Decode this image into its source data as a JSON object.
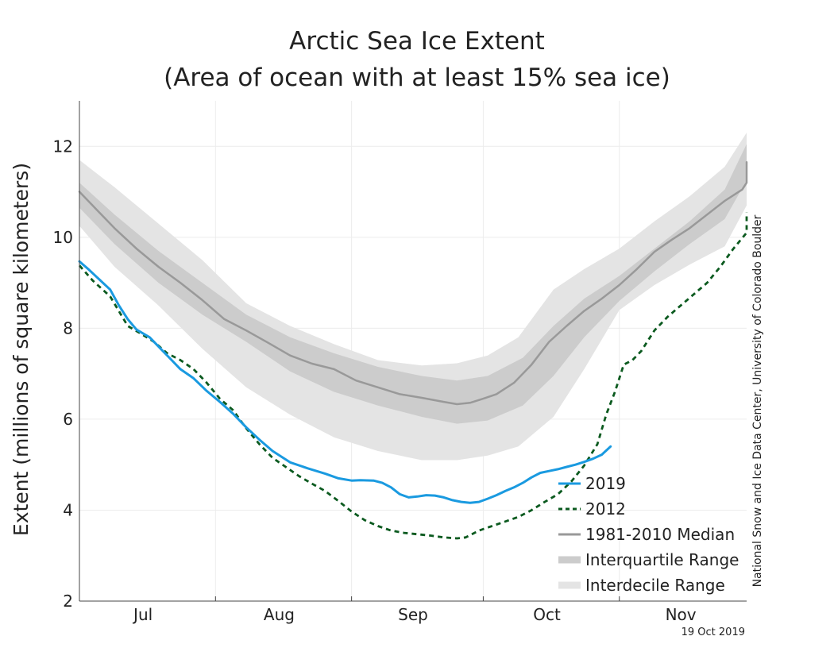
{
  "chart_data": {
    "type": "line",
    "title": "Arctic Sea Ice Extent",
    "subtitle": "(Area of ocean with at least 15% sea ice)",
    "ylabel": "Extent (millions of square kilometers)",
    "xlabel": "",
    "ylim": [
      2,
      13
    ],
    "y_ticks": [
      2,
      4,
      6,
      8,
      10,
      12
    ],
    "x_domain_days": [
      182,
      334
    ],
    "x_ticks": [
      {
        "label": "Jul",
        "day": 196.5
      },
      {
        "label": "Aug",
        "day": 227.5
      },
      {
        "label": "Sep",
        "day": 258
      },
      {
        "label": "Oct",
        "day": 288.5
      },
      {
        "label": "Nov",
        "day": 319
      }
    ],
    "x_gridlines_days": [
      213,
      244,
      274,
      305
    ],
    "grid": true,
    "legend_position": "bottom-right",
    "series": [
      {
        "name": "2019",
        "style": "solid",
        "color": "#1a9ae0",
        "points": [
          [
            182,
            9.47
          ],
          [
            184,
            9.3
          ],
          [
            186,
            9.12
          ],
          [
            189,
            8.85
          ],
          [
            191,
            8.5
          ],
          [
            193,
            8.2
          ],
          [
            195,
            7.97
          ],
          [
            198,
            7.8
          ],
          [
            200,
            7.6
          ],
          [
            203,
            7.3
          ],
          [
            205,
            7.1
          ],
          [
            208,
            6.9
          ],
          [
            211,
            6.62
          ],
          [
            214,
            6.38
          ],
          [
            217,
            6.12
          ],
          [
            220,
            5.82
          ],
          [
            223,
            5.55
          ],
          [
            226,
            5.3
          ],
          [
            230,
            5.05
          ],
          [
            234,
            4.92
          ],
          [
            238,
            4.8
          ],
          [
            241,
            4.7
          ],
          [
            244,
            4.65
          ],
          [
            246,
            4.66
          ],
          [
            249,
            4.65
          ],
          [
            251,
            4.6
          ],
          [
            253,
            4.5
          ],
          [
            255,
            4.35
          ],
          [
            257,
            4.28
          ],
          [
            259,
            4.3
          ],
          [
            261,
            4.33
          ],
          [
            263,
            4.32
          ],
          [
            265,
            4.28
          ],
          [
            267,
            4.22
          ],
          [
            269,
            4.18
          ],
          [
            271,
            4.16
          ],
          [
            273,
            4.18
          ],
          [
            275,
            4.25
          ],
          [
            277,
            4.33
          ],
          [
            279,
            4.42
          ],
          [
            281,
            4.5
          ],
          [
            283,
            4.6
          ],
          [
            285,
            4.72
          ],
          [
            287,
            4.82
          ],
          [
            289,
            4.86
          ],
          [
            291,
            4.9
          ],
          [
            293,
            4.95
          ],
          [
            295,
            5.0
          ],
          [
            297,
            5.06
          ],
          [
            299,
            5.13
          ],
          [
            301,
            5.22
          ],
          [
            303,
            5.4
          ]
        ]
      },
      {
        "name": "2012",
        "style": "dashed",
        "color": "#0b5a1f",
        "points": [
          [
            182,
            9.38
          ],
          [
            185,
            9.05
          ],
          [
            189,
            8.7
          ],
          [
            193,
            8.05
          ],
          [
            196,
            7.88
          ],
          [
            199,
            7.7
          ],
          [
            202,
            7.45
          ],
          [
            205,
            7.3
          ],
          [
            208,
            7.1
          ],
          [
            211,
            6.8
          ],
          [
            214,
            6.45
          ],
          [
            217,
            6.2
          ],
          [
            220,
            5.8
          ],
          [
            223,
            5.45
          ],
          [
            226,
            5.15
          ],
          [
            229,
            4.95
          ],
          [
            232,
            4.75
          ],
          [
            235,
            4.58
          ],
          [
            238,
            4.42
          ],
          [
            241,
            4.2
          ],
          [
            244,
            3.97
          ],
          [
            247,
            3.78
          ],
          [
            250,
            3.65
          ],
          [
            253,
            3.55
          ],
          [
            256,
            3.5
          ],
          [
            259,
            3.47
          ],
          [
            262,
            3.44
          ],
          [
            265,
            3.4
          ],
          [
            268,
            3.38
          ],
          [
            270,
            3.4
          ],
          [
            273,
            3.55
          ],
          [
            276,
            3.65
          ],
          [
            279,
            3.75
          ],
          [
            282,
            3.85
          ],
          [
            285,
            4.0
          ],
          [
            288,
            4.18
          ],
          [
            291,
            4.35
          ],
          [
            294,
            4.62
          ],
          [
            297,
            4.98
          ],
          [
            300,
            5.45
          ],
          [
            302,
            6.1
          ],
          [
            304,
            6.6
          ],
          [
            306,
            7.2
          ],
          [
            308,
            7.3
          ],
          [
            310,
            7.5
          ],
          [
            313,
            7.95
          ],
          [
            316,
            8.25
          ],
          [
            319,
            8.5
          ],
          [
            322,
            8.75
          ],
          [
            325,
            9.0
          ],
          [
            328,
            9.35
          ],
          [
            331,
            9.75
          ],
          [
            334,
            10.1
          ],
          [
            337,
            10.4
          ],
          [
            339,
            10.55
          ]
        ]
      },
      {
        "name": "1981-2010 Median",
        "style": "solid",
        "color": "#999999",
        "points": [
          [
            182,
            11.0
          ],
          [
            186,
            10.6
          ],
          [
            190,
            10.2
          ],
          [
            195,
            9.75
          ],
          [
            200,
            9.35
          ],
          [
            205,
            9.0
          ],
          [
            210,
            8.62
          ],
          [
            215,
            8.2
          ],
          [
            220,
            7.95
          ],
          [
            225,
            7.68
          ],
          [
            230,
            7.4
          ],
          [
            235,
            7.22
          ],
          [
            240,
            7.1
          ],
          [
            245,
            6.85
          ],
          [
            250,
            6.7
          ],
          [
            255,
            6.55
          ],
          [
            260,
            6.47
          ],
          [
            265,
            6.38
          ],
          [
            268,
            6.33
          ],
          [
            271,
            6.36
          ],
          [
            274,
            6.45
          ],
          [
            277,
            6.55
          ],
          [
            281,
            6.8
          ],
          [
            285,
            7.2
          ],
          [
            289,
            7.7
          ],
          [
            293,
            8.05
          ],
          [
            297,
            8.38
          ],
          [
            301,
            8.65
          ],
          [
            305,
            8.95
          ],
          [
            309,
            9.3
          ],
          [
            313,
            9.68
          ],
          [
            317,
            9.95
          ],
          [
            321,
            10.2
          ],
          [
            325,
            10.5
          ],
          [
            329,
            10.8
          ],
          [
            333,
            11.05
          ],
          [
            336,
            11.2
          ],
          [
            339,
            11.65
          ]
        ]
      }
    ],
    "interquartile_range": {
      "name": "Interquartile Range",
      "color": "#cccccc",
      "upper": [
        [
          182,
          11.2
        ],
        [
          190,
          10.5
        ],
        [
          200,
          9.7
        ],
        [
          210,
          9.0
        ],
        [
          220,
          8.3
        ],
        [
          230,
          7.8
        ],
        [
          240,
          7.45
        ],
        [
          250,
          7.15
        ],
        [
          260,
          6.95
        ],
        [
          268,
          6.85
        ],
        [
          275,
          6.95
        ],
        [
          283,
          7.35
        ],
        [
          290,
          8.05
        ],
        [
          297,
          8.65
        ],
        [
          305,
          9.15
        ],
        [
          313,
          9.75
        ],
        [
          321,
          10.35
        ],
        [
          329,
          11.05
        ],
        [
          339,
          12.05
        ]
      ],
      "lower": [
        [
          182,
          10.65
        ],
        [
          190,
          9.85
        ],
        [
          200,
          9.0
        ],
        [
          210,
          8.3
        ],
        [
          220,
          7.7
        ],
        [
          230,
          7.05
        ],
        [
          240,
          6.6
        ],
        [
          250,
          6.3
        ],
        [
          260,
          6.05
        ],
        [
          268,
          5.9
        ],
        [
          275,
          5.97
        ],
        [
          283,
          6.3
        ],
        [
          290,
          6.95
        ],
        [
          297,
          7.8
        ],
        [
          305,
          8.6
        ],
        [
          313,
          9.25
        ],
        [
          321,
          9.85
        ],
        [
          329,
          10.4
        ],
        [
          339,
          11.25
        ]
      ]
    },
    "interdecile_range": {
      "name": "Interdecile Range",
      "color": "#e4e4e4",
      "upper": [
        [
          182,
          11.7
        ],
        [
          190,
          11.1
        ],
        [
          200,
          10.3
        ],
        [
          210,
          9.5
        ],
        [
          220,
          8.55
        ],
        [
          230,
          8.05
        ],
        [
          240,
          7.65
        ],
        [
          250,
          7.3
        ],
        [
          260,
          7.18
        ],
        [
          268,
          7.23
        ],
        [
          275,
          7.4
        ],
        [
          282,
          7.8
        ],
        [
          290,
          8.85
        ],
        [
          297,
          9.3
        ],
        [
          305,
          9.75
        ],
        [
          313,
          10.35
        ],
        [
          321,
          10.9
        ],
        [
          329,
          11.55
        ],
        [
          339,
          12.3
        ]
      ],
      "lower": [
        [
          182,
          10.25
        ],
        [
          190,
          9.35
        ],
        [
          200,
          8.5
        ],
        [
          210,
          7.55
        ],
        [
          220,
          6.7
        ],
        [
          230,
          6.1
        ],
        [
          240,
          5.6
        ],
        [
          250,
          5.3
        ],
        [
          260,
          5.1
        ],
        [
          268,
          5.1
        ],
        [
          275,
          5.2
        ],
        [
          282,
          5.4
        ],
        [
          290,
          6.05
        ],
        [
          297,
          7.1
        ],
        [
          305,
          8.4
        ],
        [
          313,
          8.95
        ],
        [
          321,
          9.4
        ],
        [
          329,
          9.8
        ],
        [
          339,
          10.7
        ]
      ]
    },
    "legend": [
      {
        "label": "2019",
        "kind": "solid-line",
        "color": "#1a9ae0"
      },
      {
        "label": "2012",
        "kind": "dashed-line",
        "color": "#0b5a1f"
      },
      {
        "label": "1981-2010 Median",
        "kind": "solid-line",
        "color": "#999999"
      },
      {
        "label": "Interquartile Range",
        "kind": "band",
        "color": "#cccccc"
      },
      {
        "label": "Interdecile Range",
        "kind": "band",
        "color": "#e4e4e4"
      }
    ],
    "credit": "National Snow and Ice Data Center, University of Colorado Boulder",
    "date_stamp": "19 Oct 2019"
  }
}
